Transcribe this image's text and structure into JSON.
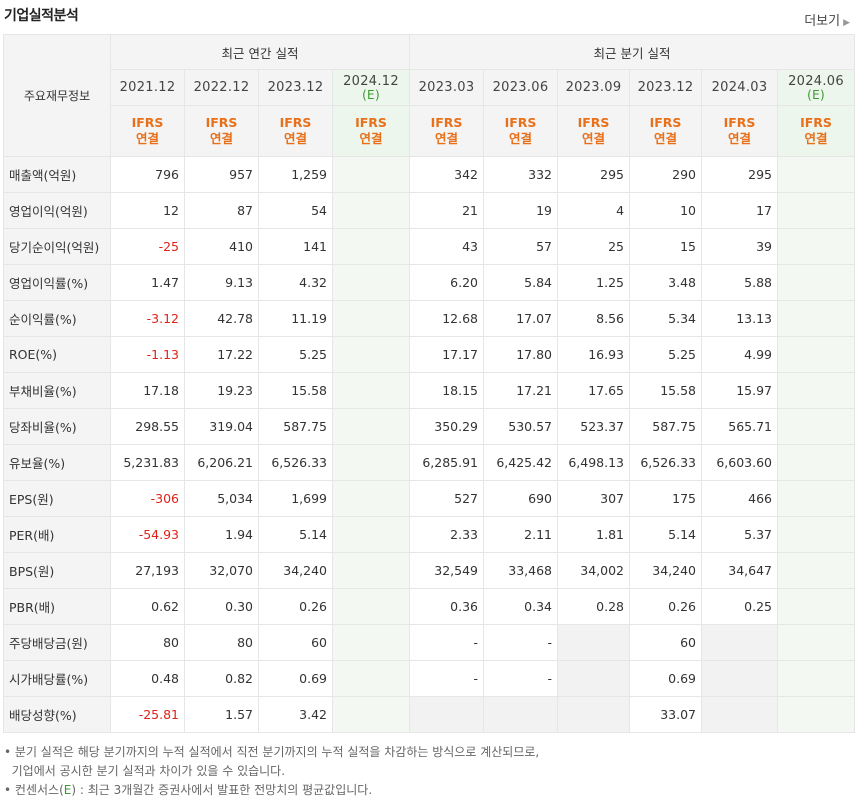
{
  "header": {
    "title": "기업실적분석",
    "more_label": "더보기"
  },
  "table": {
    "corner_label": "주요재무정보",
    "annual_label": "최근 연간 실적",
    "quarterly_label": "최근 분기 실적",
    "periods": [
      {
        "year": "2021.12",
        "est": ""
      },
      {
        "year": "2022.12",
        "est": ""
      },
      {
        "year": "2023.12",
        "est": ""
      },
      {
        "year": "2024.12",
        "est": "(E)"
      },
      {
        "year": "2023.03",
        "est": ""
      },
      {
        "year": "2023.06",
        "est": ""
      },
      {
        "year": "2023.09",
        "est": ""
      },
      {
        "year": "2023.12",
        "est": ""
      },
      {
        "year": "2024.03",
        "est": ""
      },
      {
        "year": "2024.06",
        "est": "(E)"
      }
    ],
    "ifrs_line1": "IFRS",
    "ifrs_line2": "연결",
    "rows": [
      {
        "label": "매출액(억원)",
        "values": [
          "796",
          "957",
          "1,259",
          "",
          "342",
          "332",
          "295",
          "290",
          "295",
          ""
        ]
      },
      {
        "label": "영업이익(억원)",
        "values": [
          "12",
          "87",
          "54",
          "",
          "21",
          "19",
          "4",
          "10",
          "17",
          ""
        ]
      },
      {
        "label": "당기순이익(억원)",
        "values": [
          "-25",
          "410",
          "141",
          "",
          "43",
          "57",
          "25",
          "15",
          "39",
          ""
        ]
      },
      {
        "label": "영업이익률(%)",
        "values": [
          "1.47",
          "9.13",
          "4.32",
          "",
          "6.20",
          "5.84",
          "1.25",
          "3.48",
          "5.88",
          ""
        ]
      },
      {
        "label": "순이익률(%)",
        "values": [
          "-3.12",
          "42.78",
          "11.19",
          "",
          "12.68",
          "17.07",
          "8.56",
          "5.34",
          "13.13",
          ""
        ]
      },
      {
        "label": "ROE(%)",
        "values": [
          "-1.13",
          "17.22",
          "5.25",
          "",
          "17.17",
          "17.80",
          "16.93",
          "5.25",
          "4.99",
          ""
        ]
      },
      {
        "label": "부채비율(%)",
        "values": [
          "17.18",
          "19.23",
          "15.58",
          "",
          "18.15",
          "17.21",
          "17.65",
          "15.58",
          "15.97",
          ""
        ]
      },
      {
        "label": "당좌비율(%)",
        "values": [
          "298.55",
          "319.04",
          "587.75",
          "",
          "350.29",
          "530.57",
          "523.37",
          "587.75",
          "565.71",
          ""
        ]
      },
      {
        "label": "유보율(%)",
        "values": [
          "5,231.83",
          "6,206.21",
          "6,526.33",
          "",
          "6,285.91",
          "6,425.42",
          "6,498.13",
          "6,526.33",
          "6,603.60",
          ""
        ]
      },
      {
        "label": "EPS(원)",
        "values": [
          "-306",
          "5,034",
          "1,699",
          "",
          "527",
          "690",
          "307",
          "175",
          "466",
          ""
        ]
      },
      {
        "label": "PER(배)",
        "values": [
          "-54.93",
          "1.94",
          "5.14",
          "",
          "2.33",
          "2.11",
          "1.81",
          "5.14",
          "5.37",
          ""
        ]
      },
      {
        "label": "BPS(원)",
        "values": [
          "27,193",
          "32,070",
          "34,240",
          "",
          "32,549",
          "33,468",
          "34,002",
          "34,240",
          "34,647",
          ""
        ]
      },
      {
        "label": "PBR(배)",
        "values": [
          "0.62",
          "0.30",
          "0.26",
          "",
          "0.36",
          "0.34",
          "0.28",
          "0.26",
          "0.25",
          ""
        ]
      },
      {
        "label": "주당배당금(원)",
        "values": [
          "80",
          "80",
          "60",
          "",
          "-",
          "-",
          "",
          "60",
          "",
          ""
        ]
      },
      {
        "label": "시가배당률(%)",
        "values": [
          "0.48",
          "0.82",
          "0.69",
          "",
          "-",
          "-",
          "",
          "0.69",
          "",
          ""
        ]
      },
      {
        "label": "배당성향(%)",
        "values": [
          "-25.81",
          "1.57",
          "3.42",
          "",
          "",
          "",
          "",
          "33.07",
          "",
          ""
        ]
      }
    ],
    "group_starts": [
      3,
      6,
      9,
      13
    ]
  },
  "notes": {
    "line1": "분기 실적은 해당 분기까지의 누적 실적에서 직전 분기까지의 누적 실적을 차감하는 방식으로 계산되므로,",
    "line2": "기업에서 공시한 분기 실적과 차이가 있을 수 있습니다.",
    "line3_a": "컨센서스(",
    "line3_e": "E",
    "line3_b": ") : 최근 3개월간 증권사에서 발표한 전망치의 평균값입니다."
  },
  "colors": {
    "negative": "#e0221a",
    "ifrs": "#e8701a",
    "estimate": "#3a9a2f"
  }
}
